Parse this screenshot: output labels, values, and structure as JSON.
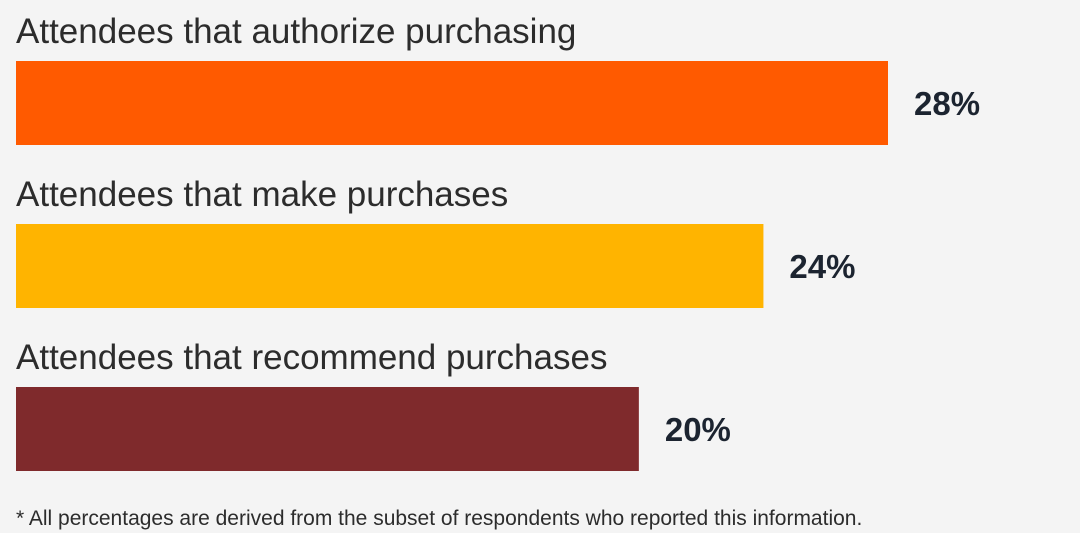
{
  "chart_data": {
    "type": "bar",
    "orientation": "horizontal",
    "categories": [
      "Attendees that authorize purchasing",
      "Attendees that make purchases",
      "Attendees that recommend purchases"
    ],
    "values": [
      28,
      24,
      20
    ],
    "value_labels": [
      "28%",
      "24%",
      "20%"
    ],
    "colors": [
      "#ff5a00",
      "#ffb400",
      "#7f2a2c"
    ],
    "grid": false,
    "legend": "none"
  },
  "footnote": "* All percentages are derived from the subset of respondents who reported this information."
}
